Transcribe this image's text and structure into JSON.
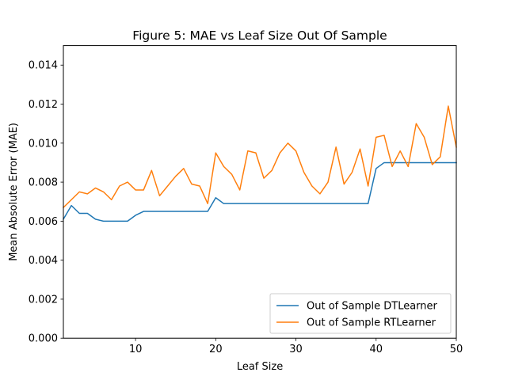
{
  "chart_data": {
    "type": "line",
    "title": "Figure 5: MAE vs Leaf Size Out Of Sample",
    "xlabel": "Leaf Size",
    "ylabel": "Mean Absolute Error (MAE)",
    "xlim": [
      1,
      50
    ],
    "ylim": [
      0,
      0.015
    ],
    "xticks": [
      10,
      20,
      30,
      40,
      50
    ],
    "xtick_labels": [
      "10",
      "20",
      "30",
      "40",
      "50"
    ],
    "yticks": [
      0,
      0.002,
      0.004,
      0.006,
      0.008,
      0.01,
      0.012,
      0.014
    ],
    "ytick_labels": [
      "0.000",
      "0.002",
      "0.004",
      "0.006",
      "0.008",
      "0.010",
      "0.012",
      "0.014"
    ],
    "grid": false,
    "legend_position": "bottom-right",
    "x": [
      1,
      2,
      3,
      4,
      5,
      6,
      7,
      8,
      9,
      10,
      11,
      12,
      13,
      14,
      15,
      16,
      17,
      18,
      19,
      20,
      21,
      22,
      23,
      24,
      25,
      26,
      27,
      28,
      29,
      30,
      31,
      32,
      33,
      34,
      35,
      36,
      37,
      38,
      39,
      40,
      41,
      42,
      43,
      44,
      45,
      46,
      47,
      48,
      49,
      50
    ],
    "series": [
      {
        "name": "Out of Sample DTLearner",
        "color": "#1f77b4",
        "values": [
          0.0061,
          0.0068,
          0.0064,
          0.0064,
          0.0061,
          0.006,
          0.006,
          0.006,
          0.006,
          0.0063,
          0.0065,
          0.0065,
          0.0065,
          0.0065,
          0.0065,
          0.0065,
          0.0065,
          0.0065,
          0.0065,
          0.0072,
          0.0069,
          0.0069,
          0.0069,
          0.0069,
          0.0069,
          0.0069,
          0.0069,
          0.0069,
          0.0069,
          0.0069,
          0.0069,
          0.0069,
          0.0069,
          0.0069,
          0.0069,
          0.0069,
          0.0069,
          0.0069,
          0.0069,
          0.0087,
          0.009,
          0.009,
          0.009,
          0.009,
          0.009,
          0.009,
          0.009,
          0.009,
          0.009,
          0.009
        ]
      },
      {
        "name": "Out of Sample RTLearner",
        "color": "#ff7f0e",
        "values": [
          0.0067,
          0.0071,
          0.0075,
          0.0074,
          0.0077,
          0.0075,
          0.0071,
          0.0078,
          0.008,
          0.0076,
          0.0076,
          0.0086,
          0.0073,
          0.0078,
          0.0083,
          0.0087,
          0.0079,
          0.0078,
          0.0069,
          0.0095,
          0.0088,
          0.0084,
          0.0076,
          0.0096,
          0.0095,
          0.0082,
          0.0086,
          0.0095,
          0.01,
          0.0096,
          0.0085,
          0.0078,
          0.0074,
          0.008,
          0.0098,
          0.0079,
          0.0085,
          0.0097,
          0.0078,
          0.0103,
          0.0104,
          0.0088,
          0.0096,
          0.0088,
          0.011,
          0.0103,
          0.0089,
          0.0093,
          0.0119,
          0.0098
        ]
      }
    ]
  }
}
